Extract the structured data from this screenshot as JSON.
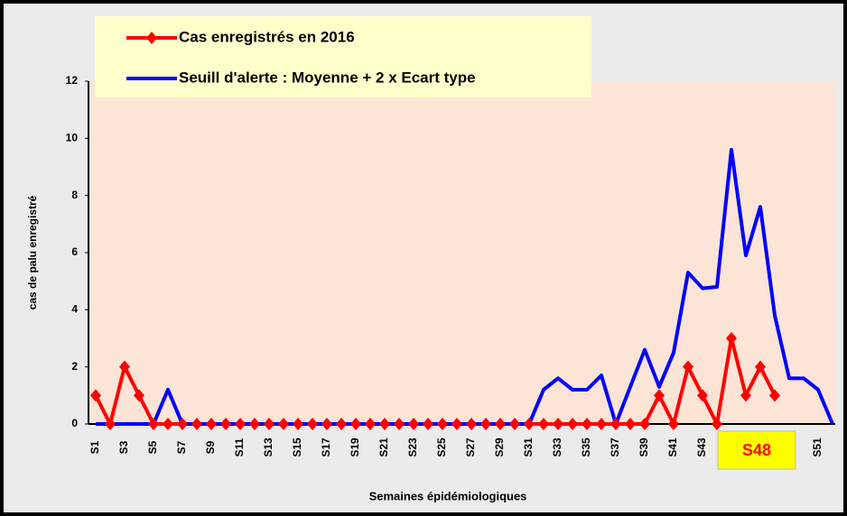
{
  "chart_data": {
    "type": "line",
    "categories": [
      "S1",
      null,
      "S3",
      null,
      "S5",
      null,
      "S7",
      null,
      "S9",
      null,
      "S11",
      null,
      "S13",
      null,
      "S15",
      null,
      "S17",
      null,
      "S19",
      null,
      "S21",
      null,
      "S23",
      null,
      "S25",
      null,
      "S27",
      null,
      "S29",
      null,
      "S31",
      null,
      "S33",
      null,
      "S35",
      null,
      "S37",
      null,
      "S39",
      null,
      "S41",
      null,
      "S43",
      null,
      null,
      null,
      null,
      null,
      null,
      null,
      "S51",
      null
    ],
    "series": [
      {
        "name": "Cas enregistrés en 2016",
        "color": "#ff0000",
        "values": [
          1,
          0,
          2,
          1,
          0,
          0,
          0,
          0,
          0,
          0,
          0,
          0,
          0,
          0,
          0,
          0,
          0,
          0,
          0,
          0,
          0,
          0,
          0,
          0,
          0,
          0,
          0,
          0,
          0,
          0,
          0,
          0,
          0,
          0,
          0,
          0,
          0,
          0,
          0,
          1,
          0,
          2,
          1,
          0,
          3,
          1,
          2,
          1,
          null,
          null,
          null,
          null
        ]
      },
      {
        "name": "Seuill d'alerte : Moyenne + 2 x Ecart type",
        "color": "#0000ff",
        "values": [
          0,
          0,
          0,
          0,
          0,
          1.2,
          0,
          0,
          0,
          0,
          0,
          0,
          0,
          0,
          0,
          0,
          0,
          0,
          0,
          0,
          0,
          0,
          0,
          0,
          0,
          0,
          0,
          0,
          0,
          0,
          0,
          1.2,
          1.6,
          1.2,
          1.2,
          1.7,
          0,
          1.3,
          2.6,
          1.3,
          2.5,
          5.3,
          4.75,
          4.8,
          9.6,
          5.9,
          7.6,
          3.8,
          1.6,
          1.6,
          1.2,
          0
        ]
      }
    ],
    "ylim": [
      0,
      12
    ],
    "yticks": [
      0,
      2,
      4,
      6,
      8,
      10,
      12
    ],
    "ylabel": "cas de palu enregistré",
    "xlabel": "Semaines épidémiologiques",
    "annotation": "S48"
  }
}
